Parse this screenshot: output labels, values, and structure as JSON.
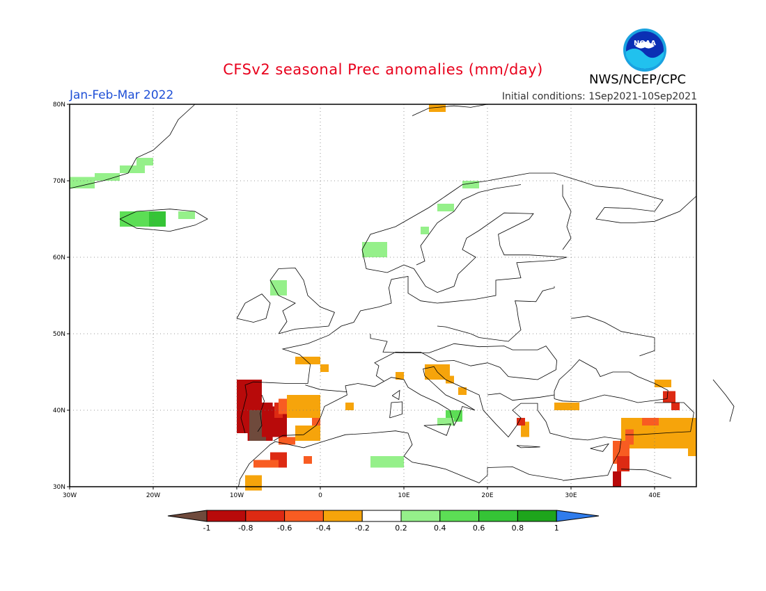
{
  "header": {
    "title": "CFSv2 seasonal Prec anomalies (mm/day)",
    "period": "Jan-Feb-Mar 2022",
    "initial_conditions": "Initial conditions: 1Sep2021-10Sep2021",
    "agency": "NWS/NCEP/CPC",
    "logo_text": "NOAA"
  },
  "map": {
    "lon_range": [
      -30,
      45
    ],
    "lat_range": [
      30,
      80
    ],
    "lat_ticks": [
      "80N",
      "70N",
      "60N",
      "50N",
      "40N",
      "30N"
    ],
    "lon_ticks": [
      "30W",
      "20W",
      "10W",
      "0",
      "10E",
      "20E",
      "30E",
      "40E"
    ],
    "grid": "dotted every 10 degrees"
  },
  "colorbar": {
    "labels": [
      "-1",
      "-0.8",
      "-0.6",
      "-0.4",
      "-0.2",
      "0.2",
      "0.4",
      "0.6",
      "0.8",
      "1"
    ],
    "colors": [
      "#6f4a3c",
      "#b80a0a",
      "#dd2a13",
      "#f85c22",
      "#f6a40b",
      "#ffffff",
      "#95f08a",
      "#5cde55",
      "#35c436",
      "#1ea51c",
      "#2f7cec"
    ]
  }
}
